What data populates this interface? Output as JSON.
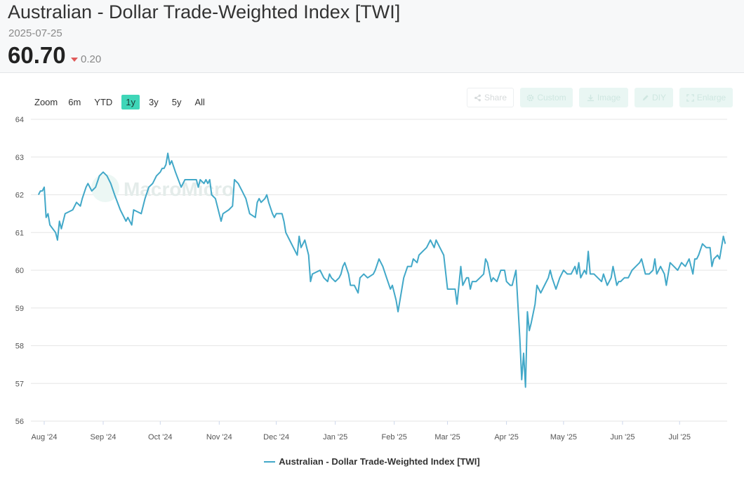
{
  "header": {
    "title": "Australian - Dollar Trade-Weighted Index [TWI]",
    "date": "2025-07-25",
    "value": "60.70",
    "change": "0.20",
    "change_direction": "down"
  },
  "zoom": {
    "label": "Zoom",
    "options": [
      "6m",
      "YTD",
      "1y",
      "3y",
      "5y",
      "All"
    ],
    "active": "1y"
  },
  "tools": [
    {
      "label": "Share",
      "icon": "share-icon"
    },
    {
      "label": "Custom",
      "icon": "gear-icon"
    },
    {
      "label": "Image",
      "icon": "download-icon"
    },
    {
      "label": "DIY",
      "icon": "pencil-icon"
    },
    {
      "label": "Enlarge",
      "icon": "expand-icon"
    }
  ],
  "watermark": "MacroMicro",
  "colors": {
    "line": "#42a8c8",
    "accent": "#3fd6b8",
    "down": "#e05a5a"
  },
  "chart_data": {
    "type": "line",
    "title": "",
    "xlabel": "",
    "ylabel": "",
    "ylim": [
      56,
      64
    ],
    "y_ticks": [
      "56",
      "57",
      "58",
      "59",
      "60",
      "61",
      "62",
      "63",
      "64"
    ],
    "x_range": [
      "2024-07-29",
      "2025-07-25"
    ],
    "x_ticks": [
      {
        "date": "2024-08-01",
        "label": "Aug '24"
      },
      {
        "date": "2024-09-01",
        "label": "Sep '24"
      },
      {
        "date": "2024-10-01",
        "label": "Oct '24"
      },
      {
        "date": "2024-11-01",
        "label": "Nov '24"
      },
      {
        "date": "2024-12-01",
        "label": "Dec '24"
      },
      {
        "date": "2025-01-01",
        "label": "Jan '25"
      },
      {
        "date": "2025-02-01",
        "label": "Feb '25"
      },
      {
        "date": "2025-03-01",
        "label": "Mar '25"
      },
      {
        "date": "2025-04-01",
        "label": "Apr '25"
      },
      {
        "date": "2025-05-01",
        "label": "May '25"
      },
      {
        "date": "2025-06-01",
        "label": "Jun '25"
      },
      {
        "date": "2025-07-01",
        "label": "Jul '25"
      }
    ],
    "grid": true,
    "legend": "bottom",
    "series": [
      {
        "name": "Australian - Dollar Trade-Weighted Index [TWI]",
        "points": [
          [
            "2024-07-29",
            62.0
          ],
          [
            "2024-07-30",
            62.1
          ],
          [
            "2024-07-31",
            62.1
          ],
          [
            "2024-08-01",
            62.2
          ],
          [
            "2024-08-02",
            61.4
          ],
          [
            "2024-08-03",
            61.5
          ],
          [
            "2024-08-04",
            61.2
          ],
          [
            "2024-08-07",
            61.0
          ],
          [
            "2024-08-08",
            60.8
          ],
          [
            "2024-08-09",
            61.3
          ],
          [
            "2024-08-10",
            61.1
          ],
          [
            "2024-08-12",
            61.5
          ],
          [
            "2024-08-16",
            61.6
          ],
          [
            "2024-08-18",
            61.8
          ],
          [
            "2024-08-20",
            61.7
          ],
          [
            "2024-08-21",
            61.9
          ],
          [
            "2024-08-23",
            62.2
          ],
          [
            "2024-08-24",
            62.3
          ],
          [
            "2024-08-26",
            62.1
          ],
          [
            "2024-08-28",
            62.2
          ],
          [
            "2024-08-30",
            62.5
          ],
          [
            "2024-09-01",
            62.6
          ],
          [
            "2024-09-03",
            62.5
          ],
          [
            "2024-09-05",
            62.3
          ],
          [
            "2024-09-07",
            62.0
          ],
          [
            "2024-09-10",
            61.6
          ],
          [
            "2024-09-13",
            61.3
          ],
          [
            "2024-09-14",
            61.4
          ],
          [
            "2024-09-16",
            61.2
          ],
          [
            "2024-09-17",
            61.6
          ],
          [
            "2024-09-21",
            61.5
          ],
          [
            "2024-09-23",
            61.9
          ],
          [
            "2024-09-25",
            62.2
          ],
          [
            "2024-09-27",
            62.3
          ],
          [
            "2024-09-29",
            62.5
          ],
          [
            "2024-10-01",
            62.6
          ],
          [
            "2024-10-02",
            62.7
          ],
          [
            "2024-10-03",
            62.7
          ],
          [
            "2024-10-04",
            62.8
          ],
          [
            "2024-10-05",
            63.1
          ],
          [
            "2024-10-06",
            62.8
          ],
          [
            "2024-10-07",
            62.9
          ],
          [
            "2024-10-09",
            62.6
          ],
          [
            "2024-10-12",
            62.2
          ],
          [
            "2024-10-14",
            62.4
          ],
          [
            "2024-10-20",
            62.4
          ],
          [
            "2024-10-21",
            62.2
          ],
          [
            "2024-10-22",
            62.4
          ],
          [
            "2024-10-24",
            62.3
          ],
          [
            "2024-10-25",
            62.4
          ],
          [
            "2024-10-26",
            62.3
          ],
          [
            "2024-10-27",
            62.4
          ],
          [
            "2024-10-28",
            62.0
          ],
          [
            "2024-10-30",
            61.9
          ],
          [
            "2024-10-31",
            61.7
          ],
          [
            "2024-11-01",
            61.5
          ],
          [
            "2024-11-02",
            61.3
          ],
          [
            "2024-11-03",
            61.5
          ],
          [
            "2024-11-06",
            61.6
          ],
          [
            "2024-11-08",
            61.7
          ],
          [
            "2024-11-09",
            62.4
          ],
          [
            "2024-11-11",
            62.3
          ],
          [
            "2024-11-13",
            62.1
          ],
          [
            "2024-11-15",
            61.9
          ],
          [
            "2024-11-17",
            61.5
          ],
          [
            "2024-11-20",
            61.4
          ],
          [
            "2024-11-21",
            61.8
          ],
          [
            "2024-11-22",
            61.9
          ],
          [
            "2024-11-23",
            61.8
          ],
          [
            "2024-11-25",
            61.9
          ],
          [
            "2024-11-26",
            62.0
          ],
          [
            "2024-11-27",
            61.8
          ],
          [
            "2024-11-29",
            61.5
          ],
          [
            "2024-11-30",
            61.4
          ],
          [
            "2024-12-01",
            61.5
          ],
          [
            "2024-12-04",
            61.5
          ],
          [
            "2024-12-05",
            61.3
          ],
          [
            "2024-12-06",
            61.0
          ],
          [
            "2024-12-08",
            60.8
          ],
          [
            "2024-12-11",
            60.5
          ],
          [
            "2024-12-12",
            60.4
          ],
          [
            "2024-12-13",
            60.9
          ],
          [
            "2024-12-14",
            60.6
          ],
          [
            "2024-12-15",
            60.7
          ],
          [
            "2024-12-16",
            60.8
          ],
          [
            "2024-12-18",
            60.4
          ],
          [
            "2024-12-19",
            59.7
          ],
          [
            "2024-12-20",
            59.9
          ],
          [
            "2024-12-24",
            60.0
          ],
          [
            "2024-12-26",
            59.8
          ],
          [
            "2024-12-28",
            59.7
          ],
          [
            "2024-12-29",
            59.9
          ],
          [
            "2024-12-30",
            59.8
          ],
          [
            "2025-01-01",
            59.7
          ],
          [
            "2025-01-03",
            59.8
          ],
          [
            "2025-01-04",
            59.9
          ],
          [
            "2025-01-05",
            60.1
          ],
          [
            "2025-01-06",
            60.2
          ],
          [
            "2025-01-08",
            59.9
          ],
          [
            "2025-01-09",
            59.6
          ],
          [
            "2025-01-11",
            59.6
          ],
          [
            "2025-01-13",
            59.4
          ],
          [
            "2025-01-14",
            59.8
          ],
          [
            "2025-01-16",
            59.9
          ],
          [
            "2025-01-18",
            59.8
          ],
          [
            "2025-01-21",
            59.9
          ],
          [
            "2025-01-22",
            60.0
          ],
          [
            "2025-01-24",
            60.3
          ],
          [
            "2025-01-26",
            60.1
          ],
          [
            "2025-01-28",
            59.8
          ],
          [
            "2025-01-30",
            59.5
          ],
          [
            "2025-01-31",
            59.6
          ],
          [
            "2025-02-02",
            59.2
          ],
          [
            "2025-02-03",
            58.9
          ],
          [
            "2025-02-06",
            59.8
          ],
          [
            "2025-02-08",
            60.1
          ],
          [
            "2025-02-10",
            60.1
          ],
          [
            "2025-02-11",
            60.3
          ],
          [
            "2025-02-13",
            60.2
          ],
          [
            "2025-02-14",
            60.4
          ],
          [
            "2025-02-16",
            60.5
          ],
          [
            "2025-02-18",
            60.6
          ],
          [
            "2025-02-20",
            60.8
          ],
          [
            "2025-02-22",
            60.6
          ],
          [
            "2025-02-23",
            60.8
          ],
          [
            "2025-02-25",
            60.6
          ],
          [
            "2025-02-27",
            60.4
          ],
          [
            "2025-03-01",
            59.5
          ],
          [
            "2025-03-03",
            59.5
          ],
          [
            "2025-03-05",
            59.5
          ],
          [
            "2025-03-06",
            59.1
          ],
          [
            "2025-03-08",
            60.1
          ],
          [
            "2025-03-09",
            59.6
          ],
          [
            "2025-03-11",
            59.8
          ],
          [
            "2025-03-12",
            59.8
          ],
          [
            "2025-03-13",
            59.5
          ],
          [
            "2025-03-14",
            59.7
          ],
          [
            "2025-03-16",
            59.7
          ],
          [
            "2025-03-18",
            59.8
          ],
          [
            "2025-03-20",
            59.9
          ],
          [
            "2025-03-21",
            60.3
          ],
          [
            "2025-03-22",
            60.2
          ],
          [
            "2025-03-24",
            59.7
          ],
          [
            "2025-03-25",
            59.8
          ],
          [
            "2025-03-27",
            59.7
          ],
          [
            "2025-03-29",
            60.0
          ],
          [
            "2025-03-31",
            60.0
          ],
          [
            "2025-04-01",
            59.7
          ],
          [
            "2025-04-03",
            59.6
          ],
          [
            "2025-04-04",
            59.6
          ],
          [
            "2025-04-06",
            60.0
          ],
          [
            "2025-04-08",
            58.2
          ],
          [
            "2025-04-09",
            57.1
          ],
          [
            "2025-04-10",
            57.8
          ],
          [
            "2025-04-11",
            56.9
          ],
          [
            "2025-04-12",
            58.9
          ],
          [
            "2025-04-13",
            58.4
          ],
          [
            "2025-04-14",
            58.6
          ],
          [
            "2025-04-16",
            59.1
          ],
          [
            "2025-04-17",
            59.6
          ],
          [
            "2025-04-19",
            59.4
          ],
          [
            "2025-04-21",
            59.6
          ],
          [
            "2025-04-23",
            59.8
          ],
          [
            "2025-04-24",
            60.0
          ],
          [
            "2025-04-25",
            59.8
          ],
          [
            "2025-04-27",
            59.5
          ],
          [
            "2025-04-29",
            59.8
          ],
          [
            "2025-05-01",
            60.0
          ],
          [
            "2025-05-03",
            59.9
          ],
          [
            "2025-05-05",
            59.9
          ],
          [
            "2025-05-07",
            60.1
          ],
          [
            "2025-05-08",
            59.9
          ],
          [
            "2025-05-09",
            60.2
          ],
          [
            "2025-05-10",
            59.8
          ],
          [
            "2025-05-12",
            60.0
          ],
          [
            "2025-05-13",
            59.9
          ],
          [
            "2025-05-14",
            60.5
          ],
          [
            "2025-05-15",
            59.9
          ],
          [
            "2025-05-17",
            59.9
          ],
          [
            "2025-05-19",
            59.8
          ],
          [
            "2025-05-21",
            59.7
          ],
          [
            "2025-05-22",
            59.9
          ],
          [
            "2025-05-24",
            59.6
          ],
          [
            "2025-05-26",
            59.8
          ],
          [
            "2025-05-27",
            60.1
          ],
          [
            "2025-05-29",
            59.6
          ],
          [
            "2025-05-30",
            59.7
          ],
          [
            "2025-05-31",
            59.7
          ],
          [
            "2025-06-02",
            59.8
          ],
          [
            "2025-06-04",
            59.8
          ],
          [
            "2025-06-06",
            60.0
          ],
          [
            "2025-06-08",
            60.1
          ],
          [
            "2025-06-10",
            60.2
          ],
          [
            "2025-06-11",
            60.3
          ],
          [
            "2025-06-13",
            59.9
          ],
          [
            "2025-06-15",
            59.9
          ],
          [
            "2025-06-17",
            60.0
          ],
          [
            "2025-06-18",
            60.3
          ],
          [
            "2025-06-19",
            59.9
          ],
          [
            "2025-06-21",
            60.1
          ],
          [
            "2025-06-23",
            59.9
          ],
          [
            "2025-06-24",
            59.6
          ],
          [
            "2025-06-26",
            60.2
          ],
          [
            "2025-06-28",
            60.1
          ],
          [
            "2025-06-30",
            60.0
          ],
          [
            "2025-07-02",
            60.2
          ],
          [
            "2025-07-04",
            60.1
          ],
          [
            "2025-07-06",
            60.3
          ],
          [
            "2025-07-08",
            59.9
          ],
          [
            "2025-07-09",
            60.3
          ],
          [
            "2025-07-10",
            60.3
          ],
          [
            "2025-07-11",
            60.4
          ],
          [
            "2025-07-13",
            60.7
          ],
          [
            "2025-07-15",
            60.6
          ],
          [
            "2025-07-17",
            60.6
          ],
          [
            "2025-07-18",
            60.1
          ],
          [
            "2025-07-19",
            60.3
          ],
          [
            "2025-07-21",
            60.4
          ],
          [
            "2025-07-22",
            60.3
          ],
          [
            "2025-07-24",
            60.9
          ],
          [
            "2025-07-25",
            60.7
          ]
        ]
      }
    ]
  }
}
